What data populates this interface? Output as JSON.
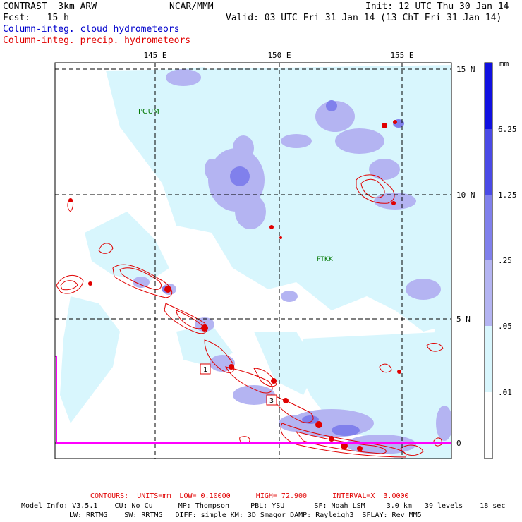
{
  "header": {
    "title": "CONTRAST  3km ARW",
    "org": "NCAR/MMM",
    "init": "Init: 12 UTC Thu 30 Jan 14",
    "fcst": "Fcst:   15 h",
    "valid": "Valid: 03 UTC Fri 31 Jan 14 (13 ChT Fri 31 Jan 14)",
    "legend_cloud": "Column-integ. cloud hydrometeors",
    "legend_precip": "Column-integ. precip. hydrometeors"
  },
  "map": {
    "lon_ticks": [
      "145 E",
      "150 E",
      "155 E"
    ],
    "lat_ticks": [
      "15 N",
      "10 N",
      "5 N",
      "0"
    ],
    "stations": [
      "PGUM",
      "PTKK"
    ],
    "boxes": [
      "1",
      "3"
    ]
  },
  "colorbar": {
    "unit": "mm",
    "labels": [
      "6.25",
      "1.25",
      ".25",
      ".05",
      ".01"
    ],
    "colors": [
      "#1010e0",
      "#4a4ae6",
      "#8080ec",
      "#b4b4f2",
      "#d8f6fd",
      "#ffffff"
    ]
  },
  "contours_line": "CONTOURS:  UNITS=mm  LOW= 0.10000      HIGH= 72.900      INTERVAL=X  3.0000",
  "model_info_1": "Model Info: V3.5.1    CU: No Cu      MP: Thompson     PBL: YSU       SF: Noah LSM     3.0 km   39 levels    18 sec",
  "model_info_2": "LW: RRTMG    SW: RRTMG   DIFF: simple KM: 3D Smagor DAMP: Rayleigh3  SFLAY: Rev MM5",
  "colors": {
    "cloud_text": "#0000cc",
    "precip_text": "#e00000",
    "contour": "#e00000",
    "station": "#007700",
    "boundary": "#ff00ff"
  }
}
